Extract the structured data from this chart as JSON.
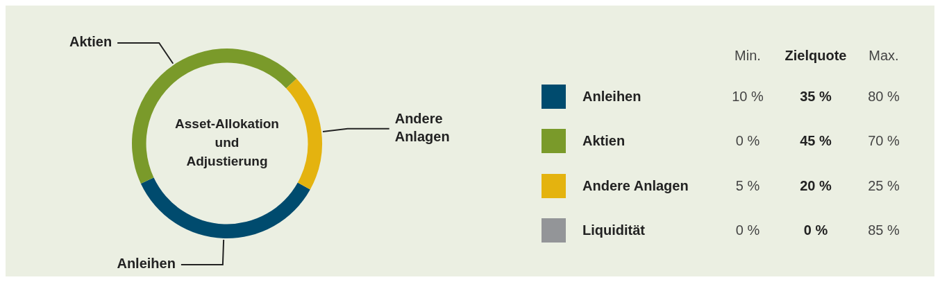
{
  "chart_data": [
    {
      "type": "donut",
      "title": "Asset-Allokation und Adjustierung",
      "categories": [
        "Anleihen",
        "Aktien",
        "Andere Anlagen"
      ],
      "values": [
        35,
        45,
        20
      ],
      "colors": [
        "#004b6e",
        "#7a9a2a",
        "#e4b30f"
      ]
    },
    {
      "type": "other",
      "categories": [
        "Anleihen",
        "Aktien",
        "Andere Anlagen",
        "Liquidität"
      ],
      "colors": [
        "#004b6e",
        "#7a9a2a",
        "#e4b30f",
        "#939598"
      ],
      "series": [
        {
          "name": "Min.",
          "values": [
            10,
            0,
            5,
            0
          ],
          "value_labels": [
            "10 %",
            "0 %",
            "5 %",
            "0 %"
          ]
        },
        {
          "name": "Zielquote",
          "values": [
            35,
            45,
            20,
            0
          ],
          "value_labels": [
            "35 %",
            "45 %",
            "20 %",
            "0 %"
          ]
        },
        {
          "name": "Max.",
          "values": [
            80,
            70,
            25,
            85
          ],
          "value_labels": [
            "80 %",
            "70 %",
            "25 %",
            "85 %"
          ]
        }
      ]
    }
  ]
}
